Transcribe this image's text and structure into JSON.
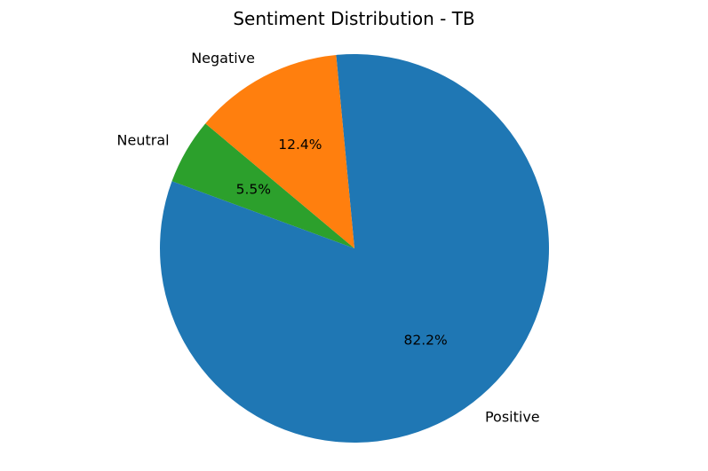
{
  "chart_data": {
    "type": "pie",
    "title": "Sentiment Distribution - TB",
    "start_angle_deg": 140,
    "direction": "counterclockwise",
    "slices": [
      {
        "label": "Neutral",
        "value": 5.5,
        "pct_label": "5.5%",
        "color": "#2ca02c"
      },
      {
        "label": "Positive",
        "value": 82.2,
        "pct_label": "82.2%",
        "color": "#1f77b4"
      },
      {
        "label": "Negative",
        "value": 12.4,
        "pct_label": "12.4%",
        "color": "#ff7f0e"
      }
    ]
  }
}
